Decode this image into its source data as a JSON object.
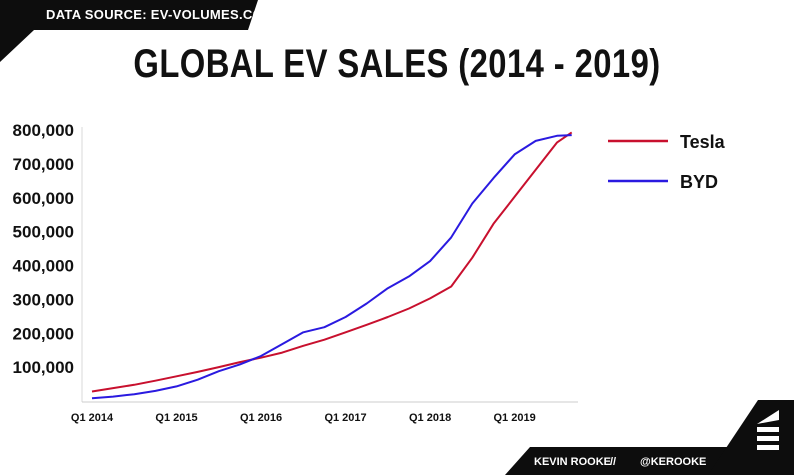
{
  "header": {
    "source": "DATA SOURCE: EV-VOLUMES.COM"
  },
  "footer": {
    "author": "KEVIN ROOKE",
    "separator": "//",
    "handle": "@KEROOKE"
  },
  "colors": {
    "tesla": "#c8102e",
    "byd": "#2a1ae0",
    "banner": "#0d0d0d"
  },
  "chart_data": {
    "type": "line",
    "title": "GLOBAL EV SALES (2014 - 2019)",
    "xlabel": "",
    "ylabel": "",
    "x_ticks": [
      {
        "label": "Q1 2014",
        "value": 0
      },
      {
        "label": "Q1 2015",
        "value": 4
      },
      {
        "label": "Q1 2016",
        "value": 8
      },
      {
        "label": "Q1 2017",
        "value": 12
      },
      {
        "label": "Q1 2018",
        "value": 16
      },
      {
        "label": "Q1 2019",
        "value": 20
      }
    ],
    "y_ticks": [
      {
        "label": "100,000",
        "value": 100000
      },
      {
        "label": "200,000",
        "value": 200000
      },
      {
        "label": "300,000",
        "value": 300000
      },
      {
        "label": "400,000",
        "value": 400000
      },
      {
        "label": "500,000",
        "value": 500000
      },
      {
        "label": "600,000",
        "value": 600000
      },
      {
        "label": "700,000",
        "value": 700000
      },
      {
        "label": "800,000",
        "value": 800000
      }
    ],
    "xlim": [
      0,
      23
    ],
    "ylim": [
      0,
      800000
    ],
    "legend_position": "right",
    "series": [
      {
        "name": "Tesla",
        "color": "#c8102e",
        "x": [
          0,
          1,
          2,
          3,
          4,
          5,
          6,
          7,
          8,
          9,
          10,
          11,
          12,
          13,
          14,
          15,
          16,
          17,
          18,
          19,
          20,
          21,
          22,
          22.7
        ],
        "values": [
          25000,
          35000,
          45000,
          57000,
          70000,
          83000,
          97000,
          112000,
          125000,
          140000,
          160000,
          178000,
          200000,
          222000,
          245000,
          270000,
          300000,
          335000,
          420000,
          520000,
          600000,
          680000,
          760000,
          790000
        ]
      },
      {
        "name": "BYD",
        "color": "#2a1ae0",
        "x": [
          0,
          1,
          2,
          3,
          4,
          5,
          6,
          7,
          8,
          9,
          10,
          11,
          12,
          13,
          14,
          15,
          16,
          17,
          18,
          19,
          20,
          21,
          22,
          22.7
        ],
        "values": [
          5000,
          10000,
          17000,
          27000,
          40000,
          60000,
          85000,
          105000,
          130000,
          165000,
          200000,
          215000,
          245000,
          285000,
          330000,
          365000,
          410000,
          480000,
          580000,
          655000,
          725000,
          765000,
          780000,
          782000
        ]
      }
    ]
  }
}
